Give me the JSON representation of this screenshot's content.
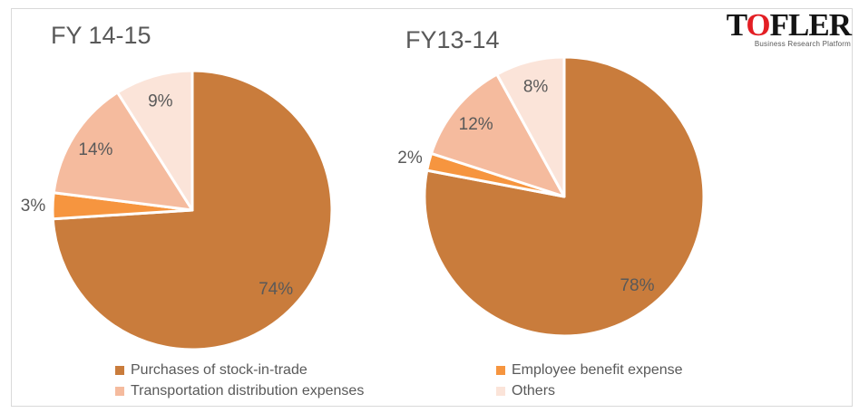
{
  "page": {
    "background": "#FFFFFF",
    "card_border_color": "#D9D9D9",
    "text_gray": "#595959"
  },
  "logo": {
    "t": "T",
    "o": "O",
    "rest": "FLER",
    "o_color": "#E31E24",
    "tagline": "Business Research Platform"
  },
  "legend": {
    "position": "bottom, two columns",
    "items": [
      {
        "label": "Purchases of stock-in-trade",
        "color": "#C97C3C"
      },
      {
        "label": "Employee benefit expense",
        "color": "#F6953F"
      },
      {
        "label": "Transportation distribution expenses",
        "color": "#F5BB9E"
      },
      {
        "label": "Others",
        "color": "#FBE4D9"
      }
    ]
  },
  "chart_data": [
    {
      "type": "pie",
      "title": "FY 14-15",
      "start": "12 o'clock",
      "direction": "clockwise",
      "slices": [
        {
          "label": "Purchases of stock-in-trade",
          "value": 74,
          "display": "74%",
          "color": "#C97C3C",
          "label_pos": "inside"
        },
        {
          "label": "Employee benefit expense",
          "value": 3,
          "display": "3%",
          "color": "#F6953F",
          "label_pos": "outside"
        },
        {
          "label": "Transportation distribution expenses",
          "value": 14,
          "display": "14%",
          "color": "#F5BB9E",
          "label_pos": "inside"
        },
        {
          "label": "Others",
          "value": 9,
          "display": "9%",
          "color": "#FBE4D9",
          "label_pos": "inside"
        }
      ]
    },
    {
      "type": "pie",
      "title": "FY13-14",
      "start": "12 o'clock",
      "direction": "clockwise",
      "slices": [
        {
          "label": "Purchases of stock-in-trade",
          "value": 78,
          "display": "78%",
          "color": "#C97C3C",
          "label_pos": "inside"
        },
        {
          "label": "Employee benefit expense",
          "value": 2,
          "display": "2%",
          "color": "#F6953F",
          "label_pos": "outside"
        },
        {
          "label": "Transportation distribution expenses",
          "value": 12,
          "display": "12%",
          "color": "#F5BB9E",
          "label_pos": "inside"
        },
        {
          "label": "Others",
          "value": 8,
          "display": "8%",
          "color": "#FBE4D9",
          "label_pos": "inside"
        }
      ]
    }
  ]
}
